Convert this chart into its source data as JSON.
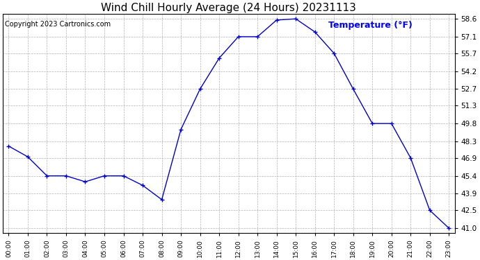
{
  "title": "Wind Chill Hourly Average (24 Hours) 20231113",
  "copyright": "Copyright 2023 Cartronics.com",
  "ylabel": "Temperature (°F)",
  "ylabel_color": "blue",
  "line_color": "#0000cc",
  "marker_color": "#0000cc",
  "background_color": "#ffffff",
  "grid_color": "#aaaaaa",
  "hours": [
    "00:00",
    "01:00",
    "02:00",
    "03:00",
    "04:00",
    "05:00",
    "06:00",
    "07:00",
    "08:00",
    "09:00",
    "10:00",
    "11:00",
    "12:00",
    "13:00",
    "14:00",
    "15:00",
    "16:00",
    "17:00",
    "18:00",
    "19:00",
    "20:00",
    "21:00",
    "22:00",
    "23:00"
  ],
  "values": [
    47.9,
    47.0,
    45.4,
    45.4,
    44.9,
    45.4,
    45.4,
    44.6,
    43.4,
    49.3,
    52.7,
    55.3,
    57.1,
    57.1,
    58.5,
    58.6,
    57.5,
    55.7,
    52.7,
    49.8,
    49.8,
    46.9,
    42.5,
    41.0
  ],
  "ylim_min": 40.6,
  "ylim_max": 59.0,
  "yticks": [
    41.0,
    42.5,
    43.9,
    45.4,
    46.9,
    48.3,
    49.8,
    51.3,
    52.7,
    54.2,
    55.7,
    57.1,
    58.6
  ],
  "title_fontsize": 11,
  "copyright_fontsize": 7,
  "ylabel_fontsize": 9
}
